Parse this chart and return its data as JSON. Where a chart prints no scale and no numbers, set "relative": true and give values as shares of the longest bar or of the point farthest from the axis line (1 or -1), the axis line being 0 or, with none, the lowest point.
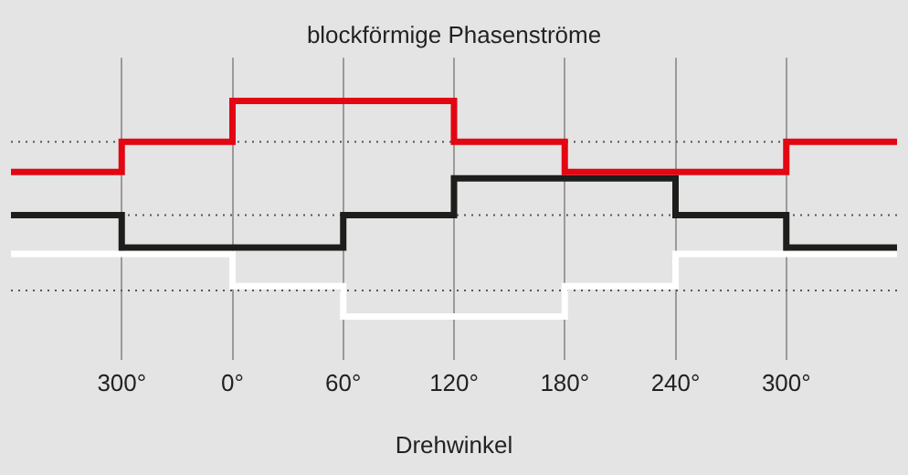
{
  "chart_data": {
    "type": "step",
    "title": "blockförmige Phasenströme",
    "xlabel": "Drehwinkel",
    "relative": true,
    "categories": [
      null,
      "300°",
      "0°",
      "60°",
      "120°",
      "180°",
      "240°",
      "300°",
      null
    ],
    "series": [
      {
        "color": "#e30613",
        "values": [
          0.67,
          0.81,
          1,
          1,
          0.81,
          0.67,
          0.67,
          0.81,
          0.81
        ]
      },
      {
        "color": "#1d1d1b",
        "values": [
          0.47,
          0.32,
          0.32,
          0.47,
          0.64,
          0.64,
          0.47,
          0.32,
          0.32
        ]
      },
      {
        "color": "#ffffff",
        "values": [
          0.29,
          0.29,
          0.14,
          0,
          0,
          0.14,
          0.29,
          0.29,
          0.29
        ]
      }
    ],
    "ref_lines": [
      {
        "axis": "y",
        "value": 0.81,
        "color": "#555555",
        "line_style": "dotted"
      },
      {
        "axis": "y",
        "value": 0.47,
        "color": "#555555",
        "line_style": "dotted"
      },
      {
        "axis": "y",
        "value": 0.12,
        "color": "#555555",
        "line_style": "dotted"
      }
    ],
    "grid": "x",
    "legend": false,
    "tick_labels": "x",
    "marker": "none",
    "line_style": "solid"
  }
}
